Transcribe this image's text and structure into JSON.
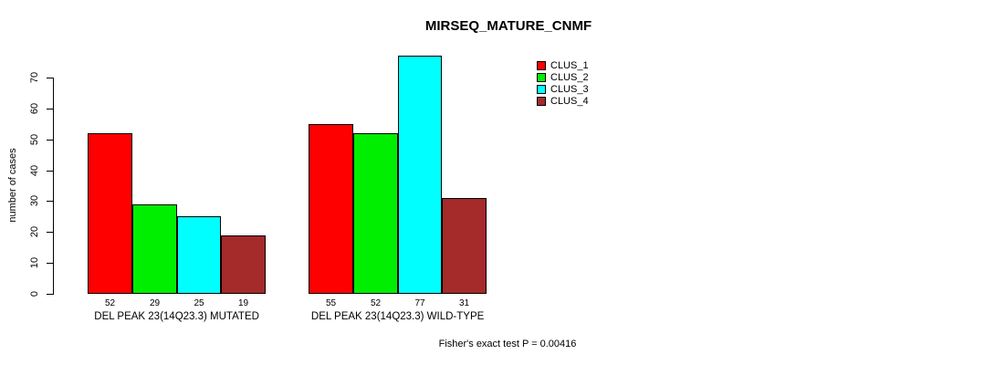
{
  "figure": {
    "title": "MIRSEQ_MATURE_CNMF",
    "footnote": "Fisher's exact test P = 0.00416"
  },
  "chart_data": {
    "type": "bar",
    "title": "MIRSEQ_MATURE_CNMF",
    "xlabel": "",
    "ylabel": "number of cases",
    "ylim": [
      0,
      77
    ],
    "yticks": [
      0,
      10,
      20,
      30,
      40,
      50,
      60,
      70
    ],
    "grid": false,
    "legend_position": "top-right",
    "categories": [
      "DEL PEAK 23(14Q23.3) MUTATED",
      "DEL PEAK 23(14Q23.3) WILD-TYPE"
    ],
    "series": [
      {
        "name": "CLUS_1",
        "color": "#FF0000",
        "values": [
          52,
          55
        ]
      },
      {
        "name": "CLUS_2",
        "color": "#00EE00",
        "values": [
          29,
          52
        ]
      },
      {
        "name": "CLUS_3",
        "color": "#00FFFF",
        "values": [
          25,
          77
        ]
      },
      {
        "name": "CLUS_4",
        "color": "#A52A2A",
        "values": [
          19,
          31
        ]
      }
    ],
    "annotation": "Fisher's exact test P = 0.00416"
  }
}
